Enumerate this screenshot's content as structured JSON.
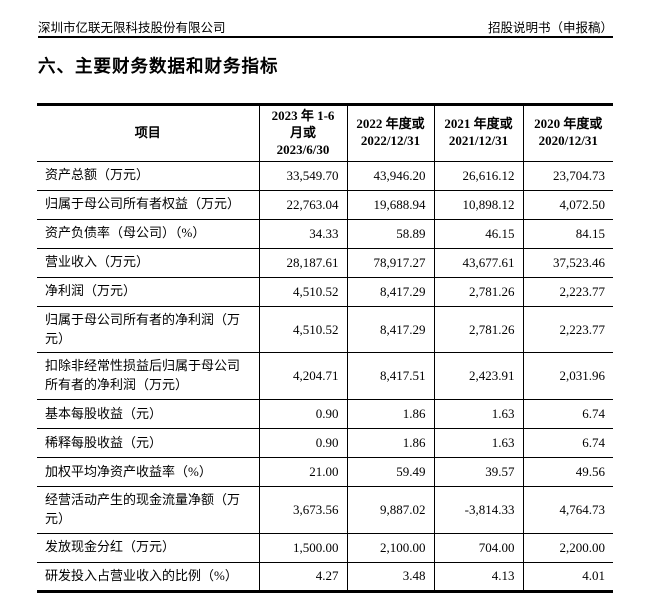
{
  "page": {
    "header_left": "深圳市亿联无限科技股份有限公司",
    "header_right": "招股说明书（申报稿）",
    "section_title": "六、主要财务数据和财务指标"
  },
  "table": {
    "columns": [
      "项目",
      "2023 年 1-6\n月或\n2023/6/30",
      "2022 年度或\n2022/12/31",
      "2021 年度或\n2021/12/31",
      "2020 年度或\n2020/12/31"
    ],
    "rows": [
      {
        "label": "资产总额（万元）",
        "values": [
          "33,549.70",
          "43,946.20",
          "26,616.12",
          "23,704.73"
        ]
      },
      {
        "label": "归属于母公司所有者权益（万元）",
        "values": [
          "22,763.04",
          "19,688.94",
          "10,898.12",
          "4,072.50"
        ]
      },
      {
        "label": "资产负债率（母公司）（%）",
        "values": [
          "34.33",
          "58.89",
          "46.15",
          "84.15"
        ]
      },
      {
        "label": "营业收入（万元）",
        "values": [
          "28,187.61",
          "78,917.27",
          "43,677.61",
          "37,523.46"
        ]
      },
      {
        "label": "净利润（万元）",
        "values": [
          "4,510.52",
          "8,417.29",
          "2,781.26",
          "2,223.77"
        ]
      },
      {
        "label": "归属于母公司所有者的净利润（万元）",
        "values": [
          "4,510.52",
          "8,417.29",
          "2,781.26",
          "2,223.77"
        ]
      },
      {
        "label": "扣除非经常性损益后归属于母公司所有者的净利润（万元）",
        "values": [
          "4,204.71",
          "8,417.51",
          "2,423.91",
          "2,031.96"
        ]
      },
      {
        "label": "基本每股收益（元）",
        "values": [
          "0.90",
          "1.86",
          "1.63",
          "6.74"
        ]
      },
      {
        "label": "稀释每股收益（元）",
        "values": [
          "0.90",
          "1.86",
          "1.63",
          "6.74"
        ]
      },
      {
        "label": "加权平均净资产收益率（%）",
        "values": [
          "21.00",
          "59.49",
          "39.57",
          "49.56"
        ]
      },
      {
        "label": "经营活动产生的现金流量净额（万元）",
        "values": [
          "3,673.56",
          "9,887.02",
          "-3,814.33",
          "4,764.73"
        ]
      },
      {
        "label": "发放现金分红（万元）",
        "values": [
          "1,500.00",
          "2,100.00",
          "704.00",
          "2,200.00"
        ]
      },
      {
        "label": "研发投入占营业收入的比例（%）",
        "values": [
          "4.27",
          "3.48",
          "4.13",
          "4.01"
        ]
      }
    ]
  }
}
